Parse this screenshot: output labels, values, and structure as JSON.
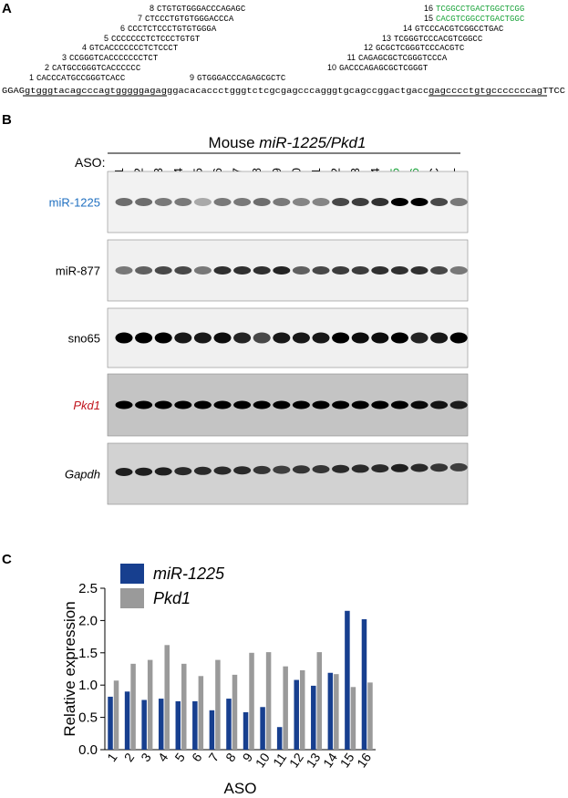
{
  "panel_a": {
    "label": "A",
    "oligos": [
      {
        "number": "1",
        "sequence": "CACCCATGCCGGGTCACC"
      },
      {
        "number": "2",
        "sequence": "CATGCCGGGTCACCCCCC"
      },
      {
        "number": "3",
        "sequence": "CCGGGTCACCCCCCCTCT"
      },
      {
        "number": "4",
        "sequence": "GTCACCCCCCCTCTCCCT"
      },
      {
        "number": "5",
        "sequence": "CCCCCCCTCTCCCTGTGT"
      },
      {
        "number": "6",
        "sequence": "CCCTCTCCCTGTGTGGGA"
      },
      {
        "number": "7",
        "sequence": "CTCCCTGTGTGGGACCCA"
      },
      {
        "number": "8",
        "sequence": "CTGTGTGGGACCCAGAGC"
      },
      {
        "number": "9",
        "sequence": "GTGGGACCCAGAGCGCTC"
      },
      {
        "number": "10",
        "sequence": "GACCCAGAGCGCTCGGGT"
      },
      {
        "number": "11",
        "sequence": "CAGAGCGCTCGGGTCCCA"
      },
      {
        "number": "12",
        "sequence": "GCGCTCGGGTCCCACGTC"
      },
      {
        "number": "13",
        "sequence": "TCGGGTCCCACGTCGGCC"
      },
      {
        "number": "14",
        "sequence": "GTCCCACGTCGGCCTGAC"
      },
      {
        "number": "15",
        "sequence": "CACGTCGGCCTGACTGGC"
      },
      {
        "number": "16",
        "sequence": "TCGGCCTGACTGGCTCGG"
      }
    ],
    "genomic_sequence": "GGAGgtgggtacagcccagtgggggagagggacacaccctgggtctcgcgagcccagggtgcagccggactgaccgagcccctgtgcccccccagTTCC"
  },
  "panel_b": {
    "label": "B",
    "title_prefix": "Mouse ",
    "title_genes": "miR-1225/Pkd1",
    "lane_header": "ASO:",
    "lanes": [
      "1",
      "2",
      "3",
      "4",
      "5",
      "6",
      "7",
      "8",
      "9",
      "10",
      "11",
      "12",
      "13",
      "14",
      "15",
      "16",
      "C",
      "-"
    ],
    "rows": [
      "miR-1225",
      "miR-877",
      "sno65",
      "Pkd1",
      "Gapdh"
    ]
  },
  "chart_data": {
    "type": "bar",
    "panel_label": "C",
    "x_label": "ASO",
    "y_label": "Relative expression",
    "categories": [
      "1",
      "2",
      "3",
      "4",
      "5",
      "6",
      "7",
      "8",
      "9",
      "10",
      "11",
      "12",
      "13",
      "14",
      "15",
      "16"
    ],
    "series": [
      {
        "name": "miR-1225",
        "color": "#173f8f",
        "values": [
          0.82,
          0.9,
          0.77,
          0.79,
          0.75,
          0.75,
          0.61,
          0.79,
          0.58,
          0.66,
          0.35,
          1.08,
          0.99,
          1.19,
          2.15,
          2.02
        ]
      },
      {
        "name": "Pkd1",
        "color": "#9a9a9a",
        "values": [
          1.07,
          1.33,
          1.39,
          1.62,
          1.33,
          1.14,
          1.39,
          1.16,
          1.5,
          1.51,
          1.29,
          1.23,
          1.51,
          1.17,
          0.97,
          1.04
        ]
      }
    ],
    "ylim": [
      0,
      2.5
    ],
    "yticks": [
      {
        "value": 0,
        "label": "0.0"
      },
      0.5,
      {
        "value": 1,
        "label": "1.0"
      },
      1.5,
      {
        "value": 2,
        "label": "2.0"
      },
      2.5
    ]
  }
}
